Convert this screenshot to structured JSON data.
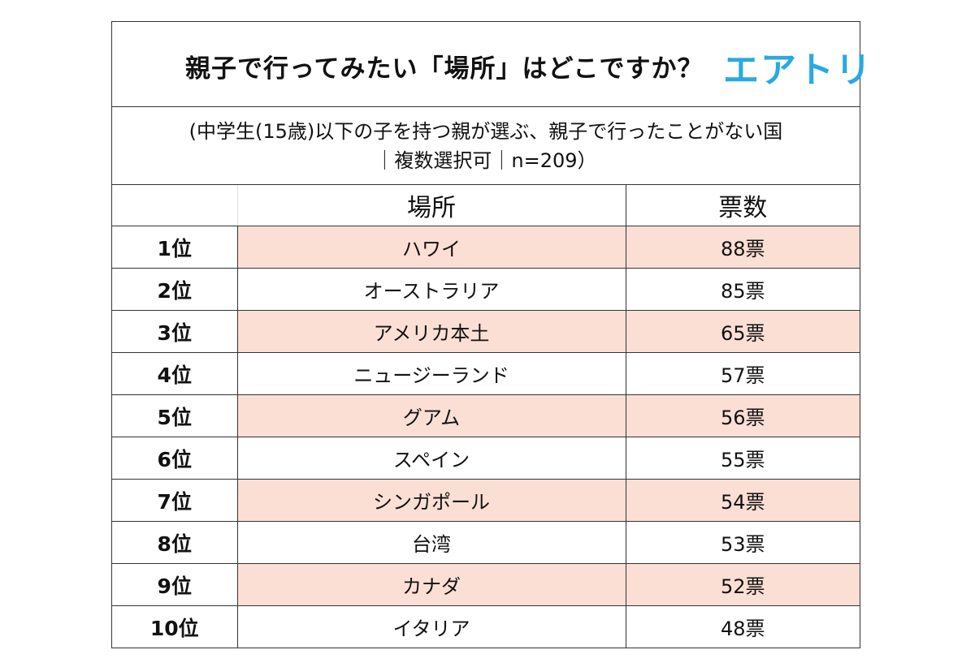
{
  "title": "親子で行ってみたい「場所」はどこですか？",
  "brand": "エアトリ",
  "subtitle": {
    "line1": "(中学生(15歳)以下の子を持つ親が選ぶ、親子で行ったことがない国",
    "line2": "｜複数選択可｜n=209）"
  },
  "table": {
    "headers": {
      "rank": "",
      "place": "場所",
      "votes": "票数"
    },
    "rows": [
      {
        "rank": "1位",
        "place": "ハワイ",
        "votes": "88票",
        "shaded": true
      },
      {
        "rank": "2位",
        "place": "オーストラリア",
        "votes": "85票",
        "shaded": false
      },
      {
        "rank": "3位",
        "place": "アメリカ本土",
        "votes": "65票",
        "shaded": true
      },
      {
        "rank": "4位",
        "place": "ニュージーランド",
        "votes": "57票",
        "shaded": false
      },
      {
        "rank": "5位",
        "place": "グアム",
        "votes": "56票",
        "shaded": true
      },
      {
        "rank": "6位",
        "place": "スペイン",
        "votes": "55票",
        "shaded": false
      },
      {
        "rank": "7位",
        "place": "シンガポール",
        "votes": "54票",
        "shaded": true
      },
      {
        "rank": "8位",
        "place": "台湾",
        "votes": "53票",
        "shaded": false
      },
      {
        "rank": "9位",
        "place": "カナダ",
        "votes": "52票",
        "shaded": true
      },
      {
        "rank": "10位",
        "place": "イタリア",
        "votes": "48票",
        "shaded": false
      }
    ]
  },
  "colors": {
    "shade": "#fbdfd5",
    "brand": "#29a9e0"
  }
}
